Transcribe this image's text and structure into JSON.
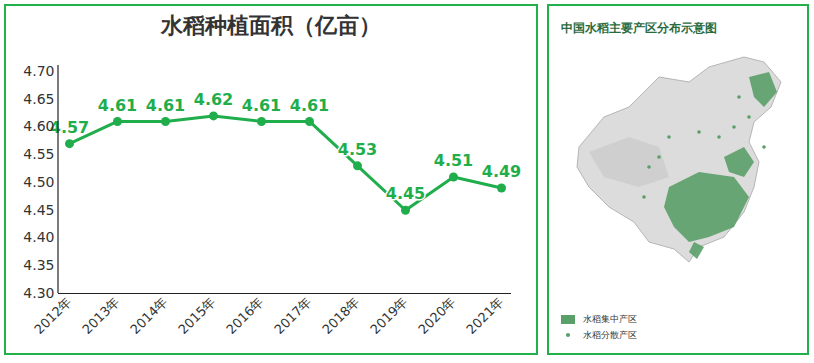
{
  "chart_data": {
    "type": "line",
    "title": "水稻种植面积（亿亩）",
    "categories": [
      "2012年",
      "2013年",
      "2014年",
      "2015年",
      "2016年",
      "2017年",
      "2018年",
      "2019年",
      "2020年",
      "2021年"
    ],
    "values": [
      4.57,
      4.61,
      4.61,
      4.62,
      4.61,
      4.61,
      4.53,
      4.45,
      4.51,
      4.49
    ],
    "color": "#1fae4b",
    "marker": "circle",
    "data_labels": true,
    "grid": false,
    "ylim": [
      4.3,
      4.7
    ],
    "yticks": [
      {
        "value": 4.3,
        "label": "4.30"
      },
      4.35,
      {
        "value": 4.4,
        "label": "4.40"
      },
      4.45,
      {
        "value": 4.5,
        "label": "4.50"
      },
      4.55,
      {
        "value": 4.6,
        "label": "4.60"
      },
      4.65,
      {
        "value": 4.7,
        "label": "4.70"
      }
    ]
  },
  "map": {
    "title": "中国水稻主要产区分布示意图",
    "legend": [
      {
        "label": "水稻集中产区",
        "marker": "square",
        "color": "#5a9e68"
      },
      {
        "label": "水稻分散产区",
        "marker": "dot",
        "color": "#5a9e68"
      }
    ]
  }
}
